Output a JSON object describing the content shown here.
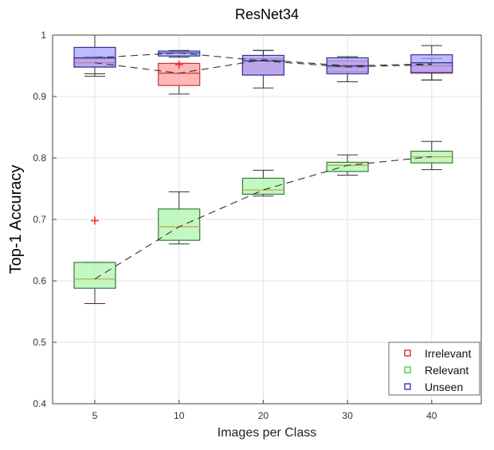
{
  "chart_data": {
    "type": "box",
    "title": "ResNet34",
    "xlabel": "Images per Class",
    "ylabel": "Top-1 Accuracy",
    "categories": [
      "5",
      "10",
      "20",
      "30",
      "40"
    ],
    "ylim": [
      0.4,
      1.0
    ],
    "yticks": [
      "0.4",
      "0.5",
      "0.6",
      "0.7",
      "0.8",
      "0.9",
      "1"
    ],
    "grid": true,
    "legend_position": "bottom-right",
    "series": [
      {
        "name": "Irrelevant",
        "color": "#ff9a9a",
        "edge": "#cc3333",
        "boxes": [
          {
            "min": 0.933,
            "q1": 0.948,
            "median": 0.955,
            "q3": 0.962,
            "max": 0.965
          },
          {
            "min": 0.904,
            "q1": 0.918,
            "median": 0.938,
            "q3": 0.954,
            "max": 0.954,
            "outliers": [
              0.952
            ]
          },
          {
            "min": 0.914,
            "q1": 0.935,
            "median": 0.958,
            "q3": 0.962,
            "max": 0.975
          },
          {
            "min": 0.924,
            "q1": 0.94,
            "median": 0.948,
            "q3": 0.958,
            "max": 0.965
          },
          {
            "min": 0.927,
            "q1": 0.938,
            "median": 0.95,
            "q3": 0.955,
            "max": 0.962
          }
        ],
        "mean": [
          0.955,
          0.938,
          0.96,
          0.95,
          0.953
        ]
      },
      {
        "name": "Relevant",
        "color": "#a8f5a8",
        "edge": "#3a7a3a",
        "boxes": [
          {
            "min": 0.563,
            "q1": 0.588,
            "median": 0.603,
            "q3": 0.63,
            "max": 0.63,
            "outliers": [
              0.698
            ]
          },
          {
            "min": 0.66,
            "q1": 0.666,
            "median": 0.688,
            "q3": 0.717,
            "max": 0.745
          },
          {
            "min": 0.738,
            "q1": 0.741,
            "median": 0.748,
            "q3": 0.767,
            "max": 0.78
          },
          {
            "min": 0.772,
            "q1": 0.778,
            "median": 0.788,
            "q3": 0.793,
            "max": 0.805
          },
          {
            "min": 0.781,
            "q1": 0.792,
            "median": 0.802,
            "q3": 0.811,
            "max": 0.827
          }
        ],
        "mean": [
          0.603,
          0.688,
          0.748,
          0.788,
          0.802
        ]
      },
      {
        "name": "Unseen",
        "color": "#a0a0ff",
        "edge": "#333399",
        "boxes": [
          {
            "min": 0.937,
            "q1": 0.948,
            "median": 0.963,
            "q3": 0.98,
            "max": 1.0
          },
          {
            "min": 0.964,
            "q1": 0.966,
            "median": 0.971,
            "q3": 0.974,
            "max": 0.975
          },
          {
            "min": 0.935,
            "q1": 0.935,
            "median": 0.958,
            "q3": 0.967,
            "max": 0.975
          },
          {
            "min": 0.924,
            "q1": 0.937,
            "median": 0.95,
            "q3": 0.963,
            "max": 0.965
          },
          {
            "min": 0.927,
            "q1": 0.939,
            "median": 0.955,
            "q3": 0.968,
            "max": 0.983
          }
        ],
        "mean": [
          0.963,
          0.971,
          0.958,
          0.948,
          0.952
        ]
      }
    ]
  }
}
